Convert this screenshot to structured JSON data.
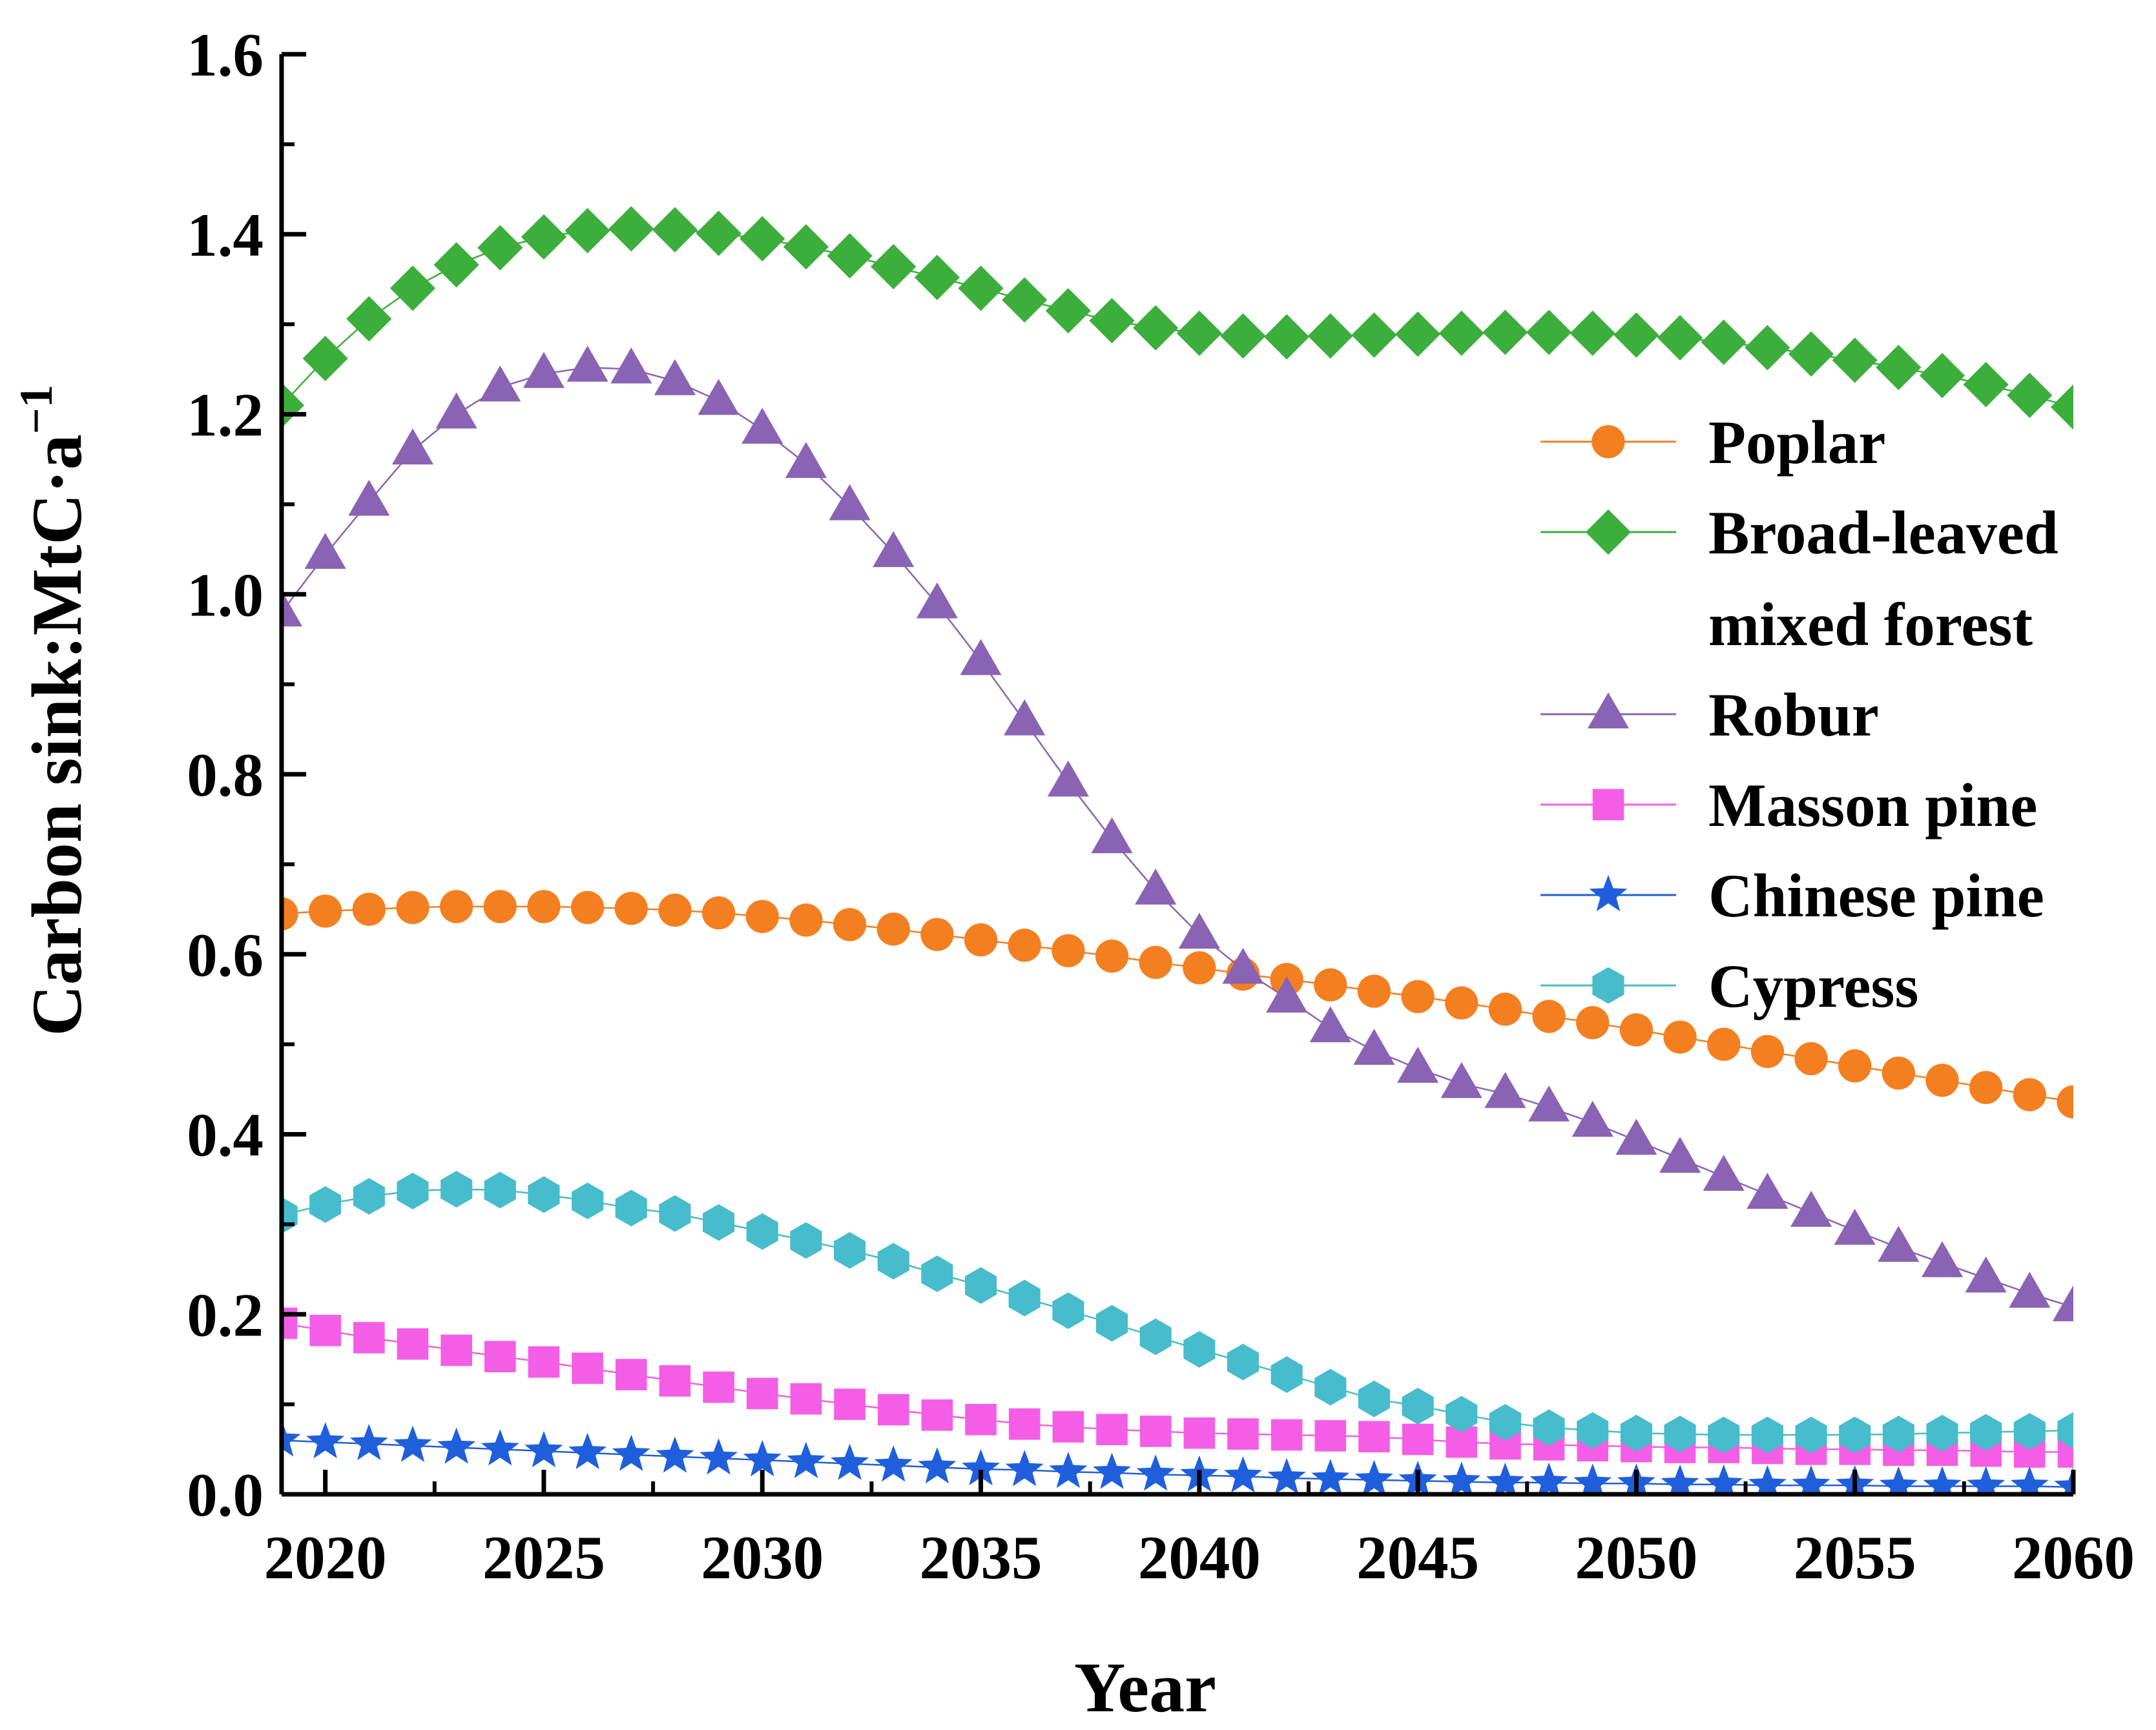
{
  "chart_data": {
    "type": "line",
    "title": "",
    "xlabel": "Year",
    "ylabel": "Carbon sink:MtC·a",
    "ylabel_superscript": "−1",
    "xlim": [
      2019,
      2060
    ],
    "ylim": [
      0.0,
      1.6
    ],
    "x_ticks": [
      2020,
      2025,
      2030,
      2035,
      2040,
      2045,
      2050,
      2055,
      2060
    ],
    "x_tick_labels": [
      "2020",
      "2025",
      "2030",
      "2035",
      "2040",
      "2045",
      "2050",
      "2055",
      "2060"
    ],
    "y_ticks": [
      0.0,
      0.2,
      0.4,
      0.6,
      0.8,
      1.0,
      1.2,
      1.4,
      1.6
    ],
    "y_tick_labels": [
      "0.0",
      "0.2",
      "0.4",
      "0.6",
      "0.8",
      "1.0",
      "1.2",
      "1.4",
      "1.6"
    ],
    "grid": false,
    "legend_position": "right",
    "x": [
      2019,
      2020,
      2021,
      2022,
      2023,
      2024,
      2025,
      2026,
      2027,
      2028,
      2029,
      2030,
      2031,
      2032,
      2033,
      2034,
      2035,
      2036,
      2037,
      2038,
      2039,
      2040,
      2041,
      2042,
      2043,
      2044,
      2045,
      2046,
      2047,
      2048,
      2049,
      2050,
      2051,
      2052,
      2053,
      2054,
      2055,
      2056,
      2057,
      2058,
      2059,
      2060
    ],
    "series": [
      {
        "name": "Poplar",
        "legend_lines": [
          "Poplar"
        ],
        "color": "#f47f20",
        "marker": "circle",
        "values": [
          0.645,
          0.648,
          0.65,
          0.652,
          0.653,
          0.653,
          0.653,
          0.652,
          0.651,
          0.649,
          0.646,
          0.642,
          0.638,
          0.633,
          0.628,
          0.622,
          0.616,
          0.61,
          0.604,
          0.598,
          0.591,
          0.585,
          0.578,
          0.572,
          0.566,
          0.559,
          0.553,
          0.546,
          0.539,
          0.531,
          0.524,
          0.516,
          0.508,
          0.5,
          0.492,
          0.484,
          0.476,
          0.468,
          0.46,
          0.452,
          0.444,
          0.436
        ]
      },
      {
        "name": "Broad-leaved mixed forest",
        "legend_lines": [
          "Broad-leaved",
          "mixed forest"
        ],
        "color": "#3cae3c",
        "marker": "diamond",
        "values": [
          1.21,
          1.262,
          1.306,
          1.34,
          1.366,
          1.385,
          1.397,
          1.404,
          1.406,
          1.405,
          1.401,
          1.395,
          1.386,
          1.376,
          1.364,
          1.352,
          1.34,
          1.327,
          1.315,
          1.304,
          1.296,
          1.29,
          1.287,
          1.286,
          1.287,
          1.288,
          1.289,
          1.29,
          1.291,
          1.291,
          1.29,
          1.288,
          1.285,
          1.28,
          1.274,
          1.267,
          1.26,
          1.252,
          1.243,
          1.233,
          1.221,
          1.208
        ]
      },
      {
        "name": "Robur",
        "legend_lines": [
          "Robur"
        ],
        "color": "#8a63b4",
        "marker": "triangle",
        "values": [
          0.98,
          1.044,
          1.103,
          1.16,
          1.2,
          1.23,
          1.245,
          1.252,
          1.25,
          1.237,
          1.215,
          1.183,
          1.145,
          1.098,
          1.046,
          0.989,
          0.926,
          0.859,
          0.791,
          0.728,
          0.671,
          0.622,
          0.583,
          0.551,
          0.518,
          0.493,
          0.473,
          0.456,
          0.445,
          0.43,
          0.413,
          0.393,
          0.373,
          0.353,
          0.333,
          0.313,
          0.293,
          0.274,
          0.257,
          0.24,
          0.223,
          0.208
        ]
      },
      {
        "name": "Masson pine",
        "legend_lines": [
          "Masson pine"
        ],
        "color": "#f45ee6",
        "marker": "square",
        "values": [
          0.19,
          0.182,
          0.174,
          0.167,
          0.16,
          0.153,
          0.147,
          0.14,
          0.133,
          0.126,
          0.119,
          0.112,
          0.106,
          0.1,
          0.094,
          0.088,
          0.083,
          0.078,
          0.075,
          0.072,
          0.07,
          0.068,
          0.067,
          0.066,
          0.065,
          0.064,
          0.061,
          0.058,
          0.056,
          0.055,
          0.054,
          0.053,
          0.052,
          0.052,
          0.051,
          0.05,
          0.05,
          0.049,
          0.049,
          0.048,
          0.047,
          0.047
        ]
      },
      {
        "name": "Chinese pine",
        "legend_lines": [
          "Chinese pine"
        ],
        "color": "#1f5fdc",
        "marker": "star",
        "values": [
          0.06,
          0.058,
          0.056,
          0.054,
          0.052,
          0.05,
          0.048,
          0.046,
          0.044,
          0.042,
          0.04,
          0.038,
          0.036,
          0.034,
          0.032,
          0.03,
          0.028,
          0.027,
          0.025,
          0.024,
          0.022,
          0.021,
          0.02,
          0.018,
          0.017,
          0.016,
          0.015,
          0.014,
          0.013,
          0.013,
          0.012,
          0.012,
          0.011,
          0.011,
          0.01,
          0.01,
          0.01,
          0.009,
          0.009,
          0.009,
          0.009,
          0.008
        ]
      },
      {
        "name": "Cypress",
        "legend_lines": [
          "Cypress"
        ],
        "color": "#46bccc",
        "marker": "hexagon",
        "values": [
          0.31,
          0.322,
          0.331,
          0.337,
          0.339,
          0.338,
          0.333,
          0.326,
          0.318,
          0.312,
          0.302,
          0.292,
          0.282,
          0.271,
          0.259,
          0.245,
          0.232,
          0.218,
          0.204,
          0.19,
          0.175,
          0.161,
          0.147,
          0.133,
          0.119,
          0.106,
          0.098,
          0.089,
          0.08,
          0.074,
          0.071,
          0.068,
          0.067,
          0.066,
          0.066,
          0.066,
          0.066,
          0.067,
          0.068,
          0.069,
          0.07,
          0.071
        ]
      }
    ]
  }
}
